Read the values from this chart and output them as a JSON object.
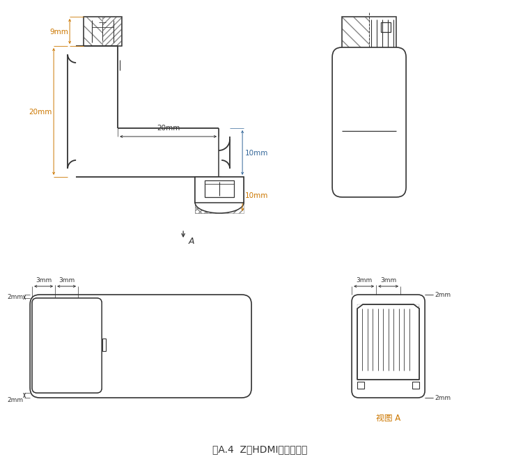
{
  "bg_color": "#ffffff",
  "lc": "#333333",
  "oc": "#cc7700",
  "bc": "#336699",
  "title": "图A.4  Z形HDMI转接器尺寸",
  "title_fs": 10,
  "label_A": "A",
  "view_A": "视图 A",
  "d9": "9mm",
  "d20v": "20mm",
  "d20h": "20mm",
  "d10t": "10mm",
  "d10b": "10mm",
  "d3_1": "3mm",
  "d3_2": "3mm",
  "d3_3": "3mm",
  "d3_4": "3mm",
  "d2_1": "2mm",
  "d2_2": "2mm",
  "d2_3": "2mm",
  "d2_4": "2mm"
}
